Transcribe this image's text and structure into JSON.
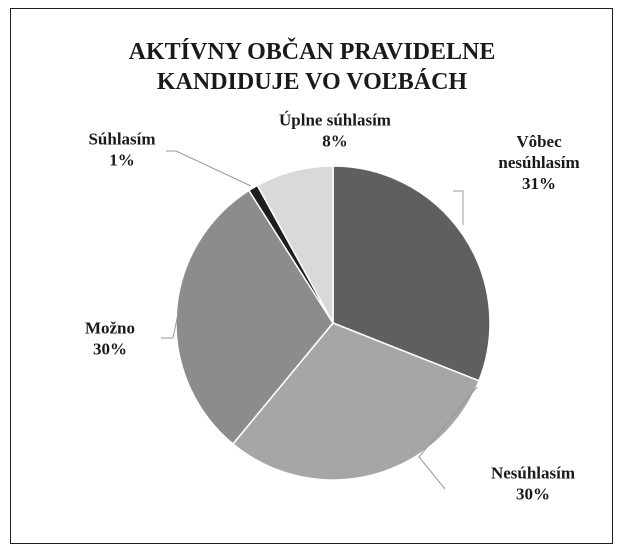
{
  "chart_data": {
    "type": "pie",
    "title": [
      "AKTÍVNY OBČAN PRAVIDELNE",
      "KANDIDUJE VO VOĽBÁCH"
    ],
    "slices": [
      {
        "label": [
          "Vôbec",
          "nesúhlasím"
        ],
        "value": 31,
        "display": "31%",
        "color": "#5f5f5f"
      },
      {
        "label": [
          "Nesúhlasím"
        ],
        "value": 30,
        "display": "30%",
        "color": "#a6a6a6"
      },
      {
        "label": [
          "Možno"
        ],
        "value": 30,
        "display": "30%",
        "color": "#8c8c8c"
      },
      {
        "label": [
          "Súhlasím"
        ],
        "value": 1,
        "display": "1%",
        "color": "#1e1e1e"
      },
      {
        "label": [
          "Úplne súhlasím"
        ],
        "value": 8,
        "display": "8%",
        "color": "#d9d9d9"
      }
    ],
    "start_angle_deg": 0,
    "direction": "clockwise",
    "legend": "none",
    "data_labels": "outside with leader lines"
  }
}
